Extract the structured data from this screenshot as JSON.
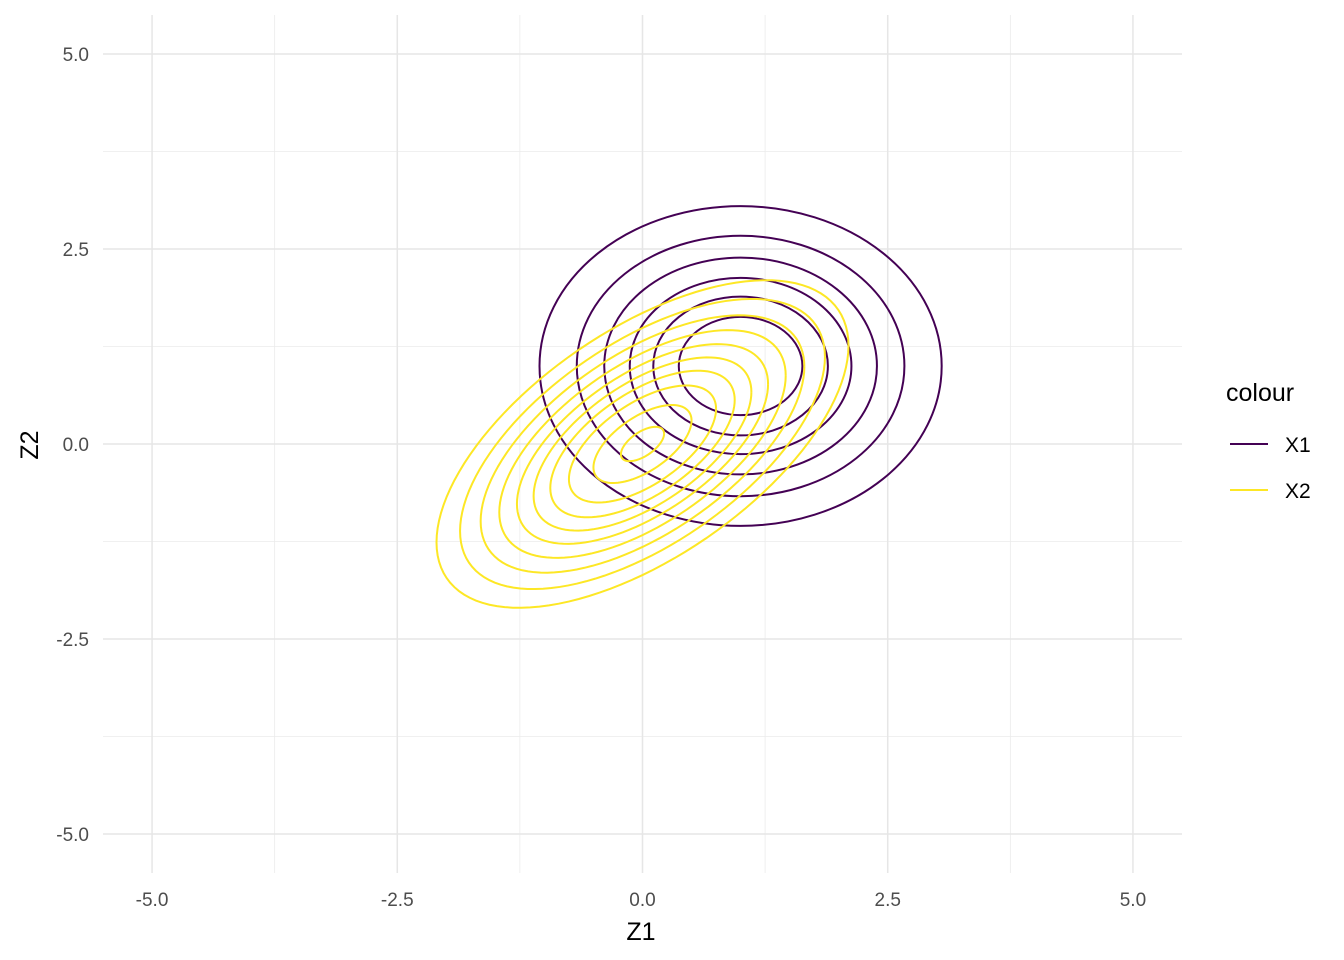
{
  "chart_data": {
    "type": "contour",
    "xlabel": "Z1",
    "ylabel": "Z2",
    "xlim": [
      -5.5,
      5.5
    ],
    "ylim": [
      -5.5,
      5.5
    ],
    "x_ticks": [
      "-5.0",
      "-2.5",
      "0.0",
      "2.5",
      "5.0"
    ],
    "y_ticks": [
      "5.0",
      "2.5",
      "0.0",
      "-2.5",
      "-5.0"
    ],
    "x_tick_values": [
      -5,
      -2.5,
      0,
      2.5,
      5
    ],
    "y_tick_values": [
      5,
      2.5,
      0,
      -2.5,
      -5
    ],
    "grid": true,
    "legend": {
      "title": "colour",
      "placement": "right",
      "entries": [
        {
          "label": "X1",
          "color": "#440154"
        },
        {
          "label": "X2",
          "color": "#FDE725"
        }
      ]
    },
    "series": [
      {
        "name": "X1",
        "color": "#440154",
        "center": [
          1.0,
          1.0
        ],
        "correlation": 0.0,
        "contours": [
          {
            "rx": 2.05,
            "ry": 2.05
          },
          {
            "rx": 1.67,
            "ry": 1.67
          },
          {
            "rx": 1.39,
            "ry": 1.39
          },
          {
            "rx": 1.13,
            "ry": 1.13
          },
          {
            "rx": 0.89,
            "ry": 0.89
          },
          {
            "rx": 0.63,
            "ry": 0.63
          }
        ]
      },
      {
        "name": "X2",
        "color": "#FDE725",
        "center": [
          0.0,
          0.0
        ],
        "correlation": 0.6,
        "contours": [
          {
            "sx": 2.1,
            "sy": 2.1
          },
          {
            "sx": 1.86,
            "sy": 1.86
          },
          {
            "sx": 1.65,
            "sy": 1.65
          },
          {
            "sx": 1.46,
            "sy": 1.46
          },
          {
            "sx": 1.28,
            "sy": 1.28
          },
          {
            "sx": 1.11,
            "sy": 1.11
          },
          {
            "sx": 0.94,
            "sy": 0.94
          },
          {
            "sx": 0.75,
            "sy": 0.75
          },
          {
            "sx": 0.5,
            "sy": 0.5
          },
          {
            "sx": 0.22,
            "sy": 0.22
          }
        ]
      }
    ]
  }
}
